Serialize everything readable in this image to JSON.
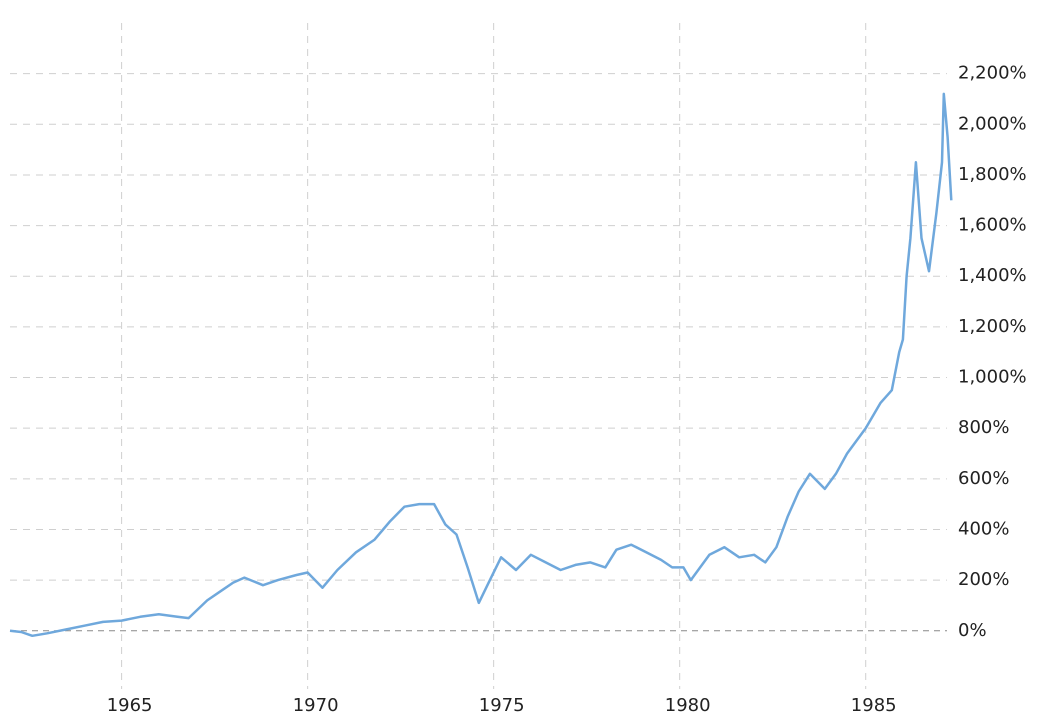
{
  "chart_data": {
    "type": "line",
    "color": "#6fa8dc",
    "grid": true,
    "x": [
      1962.0,
      1962.3,
      1962.6,
      1963.0,
      1963.5,
      1964.0,
      1964.5,
      1965.0,
      1965.5,
      1966.0,
      1966.5,
      1966.8,
      1967.3,
      1967.7,
      1968.0,
      1968.3,
      1968.8,
      1969.2,
      1969.7,
      1970.0,
      1970.4,
      1970.8,
      1971.3,
      1971.8,
      1972.2,
      1972.6,
      1973.0,
      1973.4,
      1973.7,
      1974.0,
      1974.3,
      1974.6,
      1974.9,
      1975.2,
      1975.6,
      1976.0,
      1976.4,
      1976.8,
      1977.2,
      1977.6,
      1978.0,
      1978.3,
      1978.7,
      1979.1,
      1979.5,
      1979.8,
      1980.1,
      1980.3,
      1980.8,
      1981.2,
      1981.6,
      1982.0,
      1982.3,
      1982.6,
      1982.9,
      1983.2,
      1983.5,
      1983.9,
      1984.2,
      1984.5,
      1984.9,
      1985.0,
      1985.4,
      1985.7,
      1985.9,
      1986.0,
      1986.1,
      1986.2,
      1986.35,
      1986.5,
      1986.7,
      1986.9,
      1987.05,
      1987.1,
      1987.2,
      1987.3
    ],
    "values": [
      0,
      -5,
      -20,
      -10,
      5,
      20,
      35,
      40,
      55,
      65,
      55,
      50,
      120,
      160,
      190,
      210,
      180,
      200,
      220,
      230,
      170,
      240,
      310,
      360,
      430,
      490,
      500,
      500,
      420,
      380,
      250,
      110,
      200,
      290,
      240,
      300,
      270,
      240,
      260,
      270,
      250,
      320,
      340,
      310,
      280,
      250,
      250,
      200,
      300,
      330,
      290,
      300,
      270,
      330,
      450,
      550,
      620,
      560,
      620,
      700,
      780,
      800,
      900,
      950,
      1100,
      1150,
      1400,
      1550,
      1850,
      1550,
      1420,
      1650,
      1850,
      2120,
      1950,
      1700
    ],
    "xlim": [
      1962.0,
      1987.4
    ],
    "xticks": [
      1965,
      1970,
      1975,
      1980,
      1985
    ],
    "ylim": [
      -230,
      2400
    ],
    "yticks": [
      {
        "value": 0,
        "label": "0%"
      },
      {
        "value": 200,
        "label": "200%"
      },
      {
        "value": 400,
        "label": "400%"
      },
      {
        "value": 600,
        "label": "600%"
      },
      {
        "value": 800,
        "label": "800%"
      },
      {
        "value": 1000,
        "label": "1,000%"
      },
      {
        "value": 1200,
        "label": "1,200%"
      },
      {
        "value": 1400,
        "label": "1,400%"
      },
      {
        "value": 1600,
        "label": "1,600%"
      },
      {
        "value": 1800,
        "label": "1,800%"
      },
      {
        "value": 2000,
        "label": "2,000%"
      },
      {
        "value": 2200,
        "label": "2,200%"
      }
    ]
  }
}
